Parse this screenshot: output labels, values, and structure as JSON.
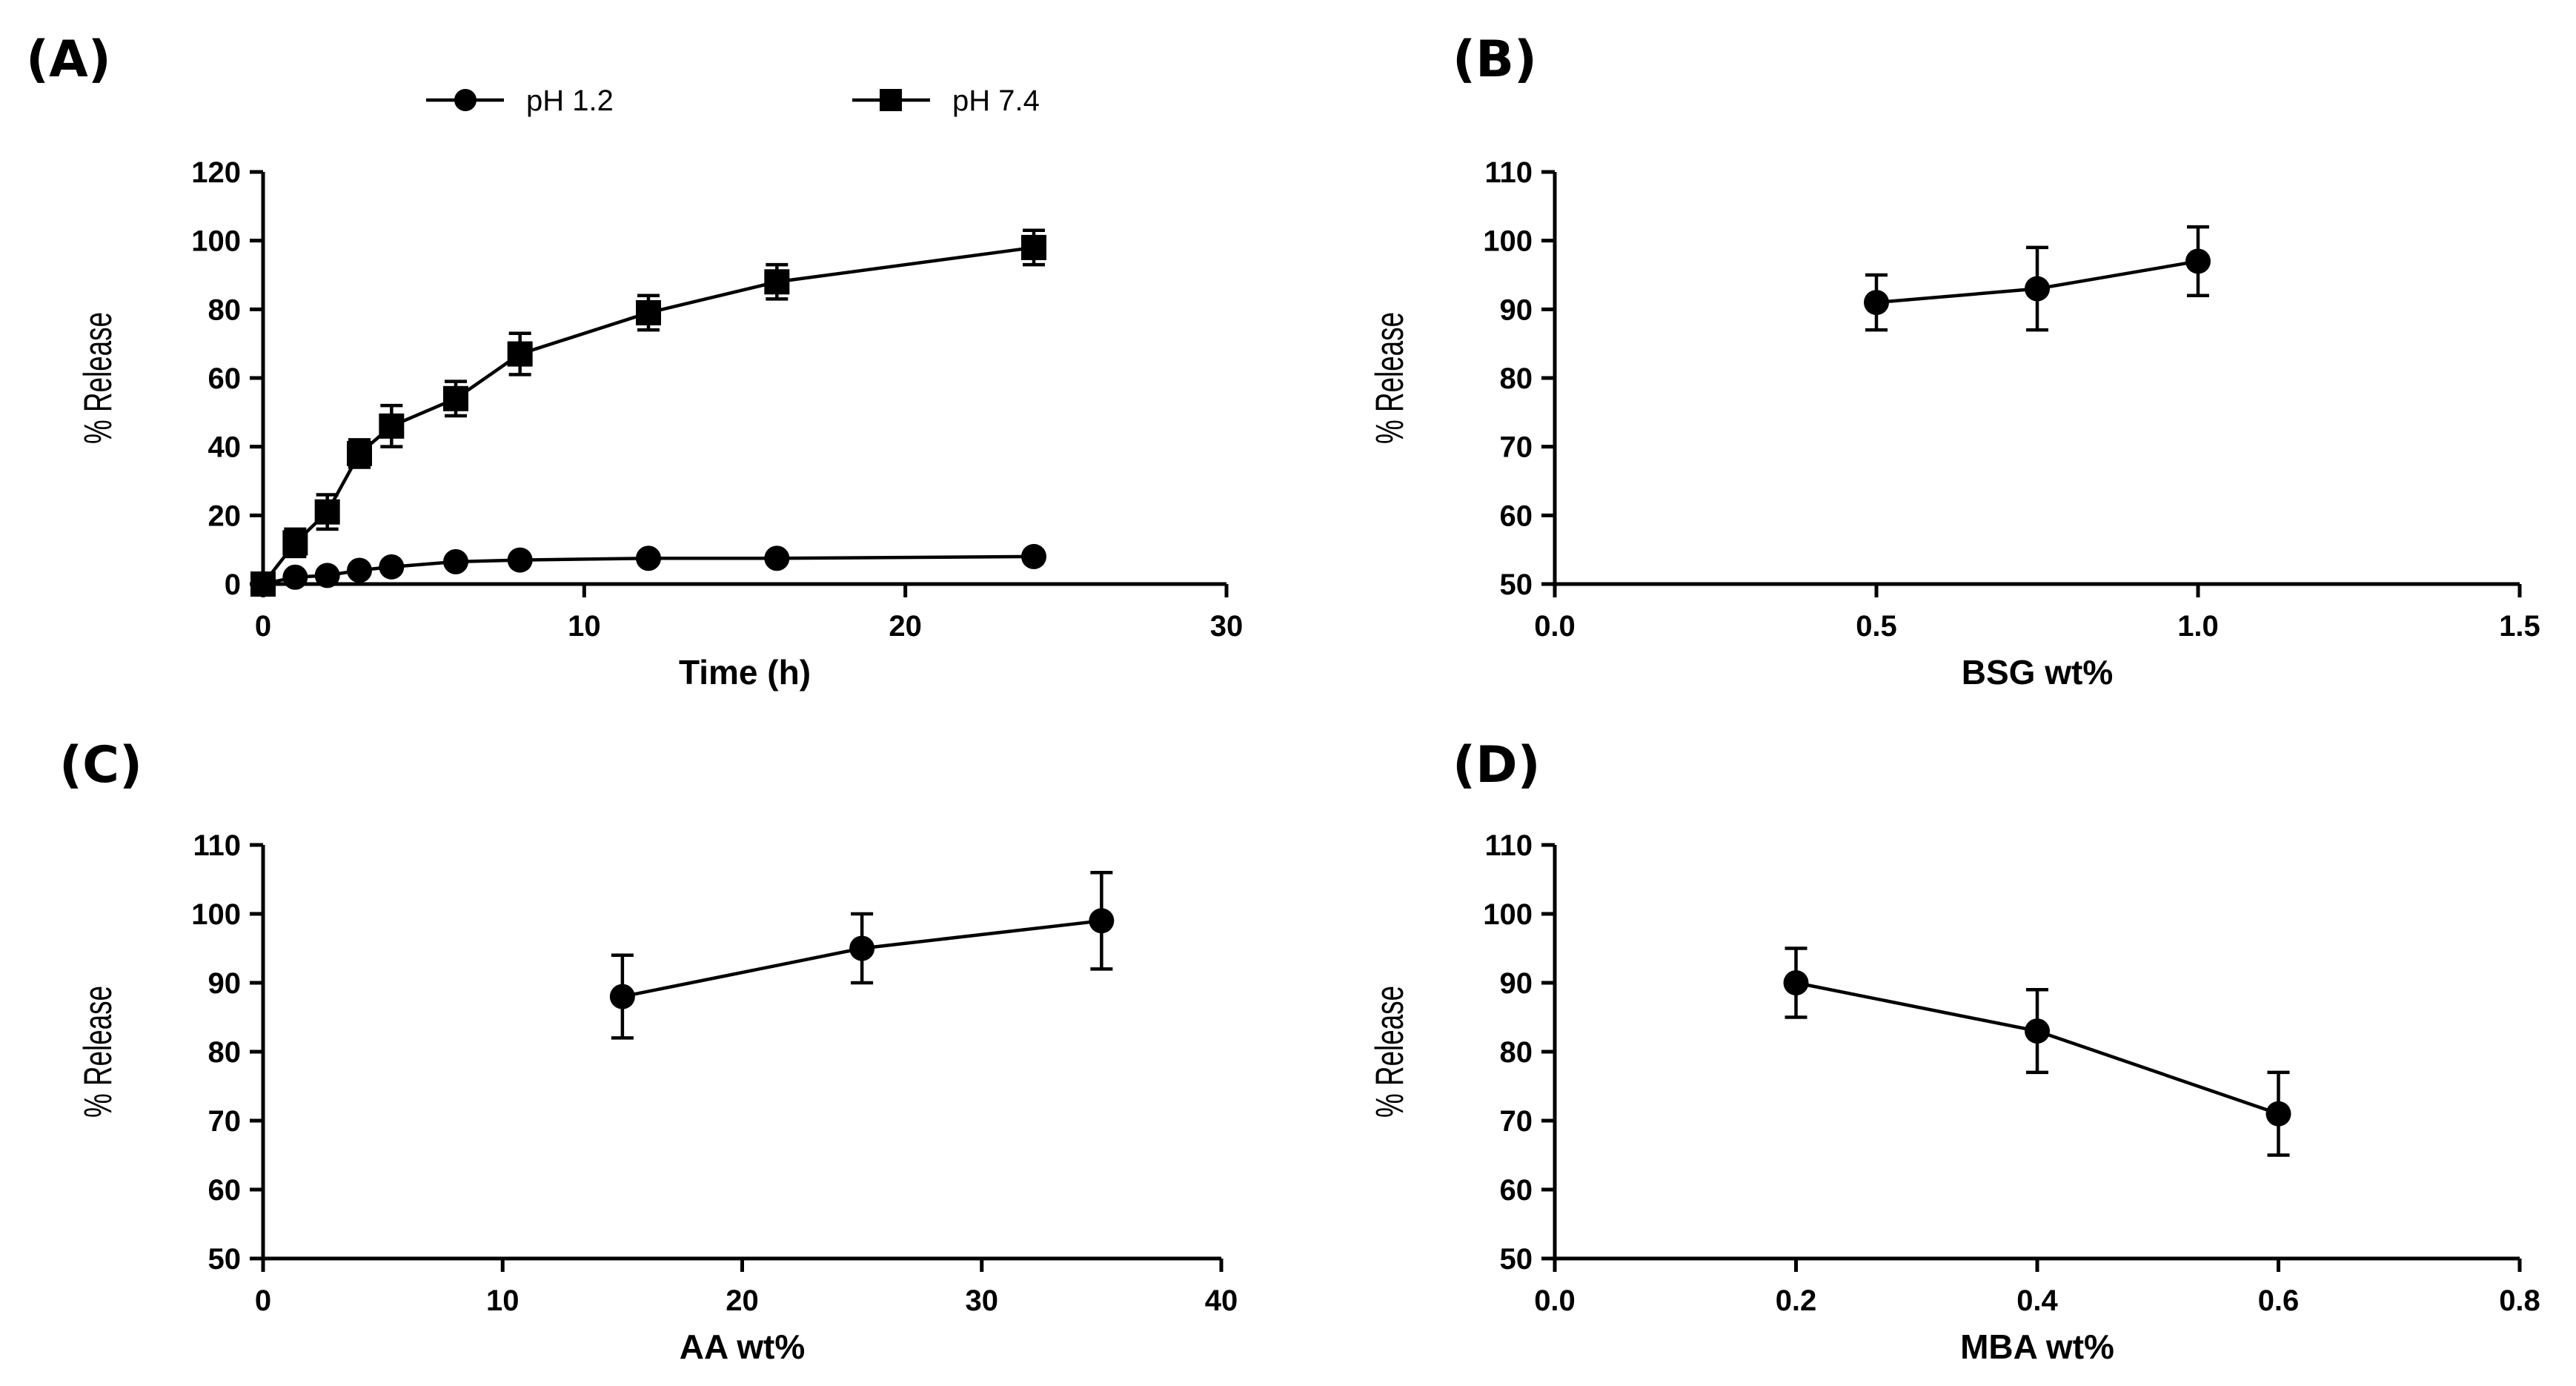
{
  "chart_data": [
    {
      "id": "A",
      "panel_label": "(A)",
      "type": "line",
      "xlabel": "Time (h)",
      "ylabel": "% Release",
      "xlim": [
        0,
        30
      ],
      "ylim": [
        0,
        120
      ],
      "xticks": [
        0,
        10,
        20,
        30
      ],
      "yticks": [
        0,
        20,
        40,
        60,
        80,
        100,
        120
      ],
      "xtick_labels": [
        "0",
        "10",
        "20",
        "30"
      ],
      "ytick_labels": [
        "0",
        "20",
        "40",
        "60",
        "80",
        "100",
        "120"
      ],
      "legend": {
        "placement": "top",
        "entries": [
          "pH 1.2",
          "pH 7.4"
        ]
      },
      "series": [
        {
          "name": "pH 1.2",
          "marker": "circle",
          "x": [
            0,
            1,
            2,
            3,
            4,
            6,
            8,
            12,
            16,
            24
          ],
          "y": [
            0,
            2,
            2.5,
            4,
            5,
            6.5,
            7,
            7.5,
            7.5,
            8
          ],
          "err": [
            0,
            0,
            0,
            0,
            0,
            0,
            0,
            0,
            0,
            0
          ]
        },
        {
          "name": "pH 7.4",
          "marker": "square",
          "x": [
            0,
            1,
            2,
            3,
            4,
            6,
            8,
            12,
            16,
            24
          ],
          "y": [
            0,
            12,
            21,
            38,
            46,
            54,
            67,
            79,
            88,
            98
          ],
          "err": [
            0,
            4,
            5,
            4,
            6,
            5,
            6,
            5,
            5,
            5
          ]
        }
      ]
    },
    {
      "id": "B",
      "panel_label": "(B)",
      "type": "line",
      "xlabel": "BSG wt%",
      "ylabel": "% Release",
      "xlim": [
        0,
        1.5
      ],
      "ylim": [
        50,
        110
      ],
      "xticks": [
        0,
        0.5,
        1.0,
        1.5
      ],
      "yticks": [
        50,
        60,
        70,
        80,
        90,
        100,
        110
      ],
      "xtick_labels": [
        "0.0",
        "0.5",
        "1.0",
        "1.5"
      ],
      "ytick_labels": [
        "50",
        "60",
        "70",
        "80",
        "90",
        "100",
        "110"
      ],
      "series": [
        {
          "name": "",
          "marker": "circle",
          "x": [
            0.5,
            0.75,
            1.0
          ],
          "y": [
            91,
            93,
            97
          ],
          "err": [
            4,
            6,
            5
          ]
        }
      ]
    },
    {
      "id": "C",
      "panel_label": "(C)",
      "type": "line",
      "xlabel": "AA wt%",
      "ylabel": "% Release",
      "xlim": [
        0,
        40
      ],
      "ylim": [
        50,
        110
      ],
      "xticks": [
        0,
        10,
        20,
        30,
        40
      ],
      "yticks": [
        50,
        60,
        70,
        80,
        90,
        100,
        110
      ],
      "xtick_labels": [
        "0",
        "10",
        "20",
        "30",
        "40"
      ],
      "ytick_labels": [
        "50",
        "60",
        "70",
        "80",
        "90",
        "100",
        "110"
      ],
      "series": [
        {
          "name": "",
          "marker": "circle",
          "x": [
            15,
            25,
            35
          ],
          "y": [
            88,
            95,
            99
          ],
          "err": [
            6,
            5,
            7
          ]
        }
      ]
    },
    {
      "id": "D",
      "panel_label": "(D)",
      "type": "line",
      "xlabel": "MBA wt%",
      "ylabel": "% Release",
      "xlim": [
        0,
        0.8
      ],
      "ylim": [
        50,
        110
      ],
      "xticks": [
        0,
        0.2,
        0.4,
        0.6,
        0.8
      ],
      "yticks": [
        50,
        60,
        70,
        80,
        90,
        100,
        110
      ],
      "xtick_labels": [
        "0.0",
        "0.2",
        "0.4",
        "0.6",
        "0.8"
      ],
      "ytick_labels": [
        "50",
        "60",
        "70",
        "80",
        "90",
        "100",
        "110"
      ],
      "series": [
        {
          "name": "",
          "marker": "circle",
          "x": [
            0.2,
            0.4,
            0.6
          ],
          "y": [
            90,
            83,
            71
          ],
          "err": [
            5,
            6,
            6
          ]
        }
      ]
    }
  ]
}
